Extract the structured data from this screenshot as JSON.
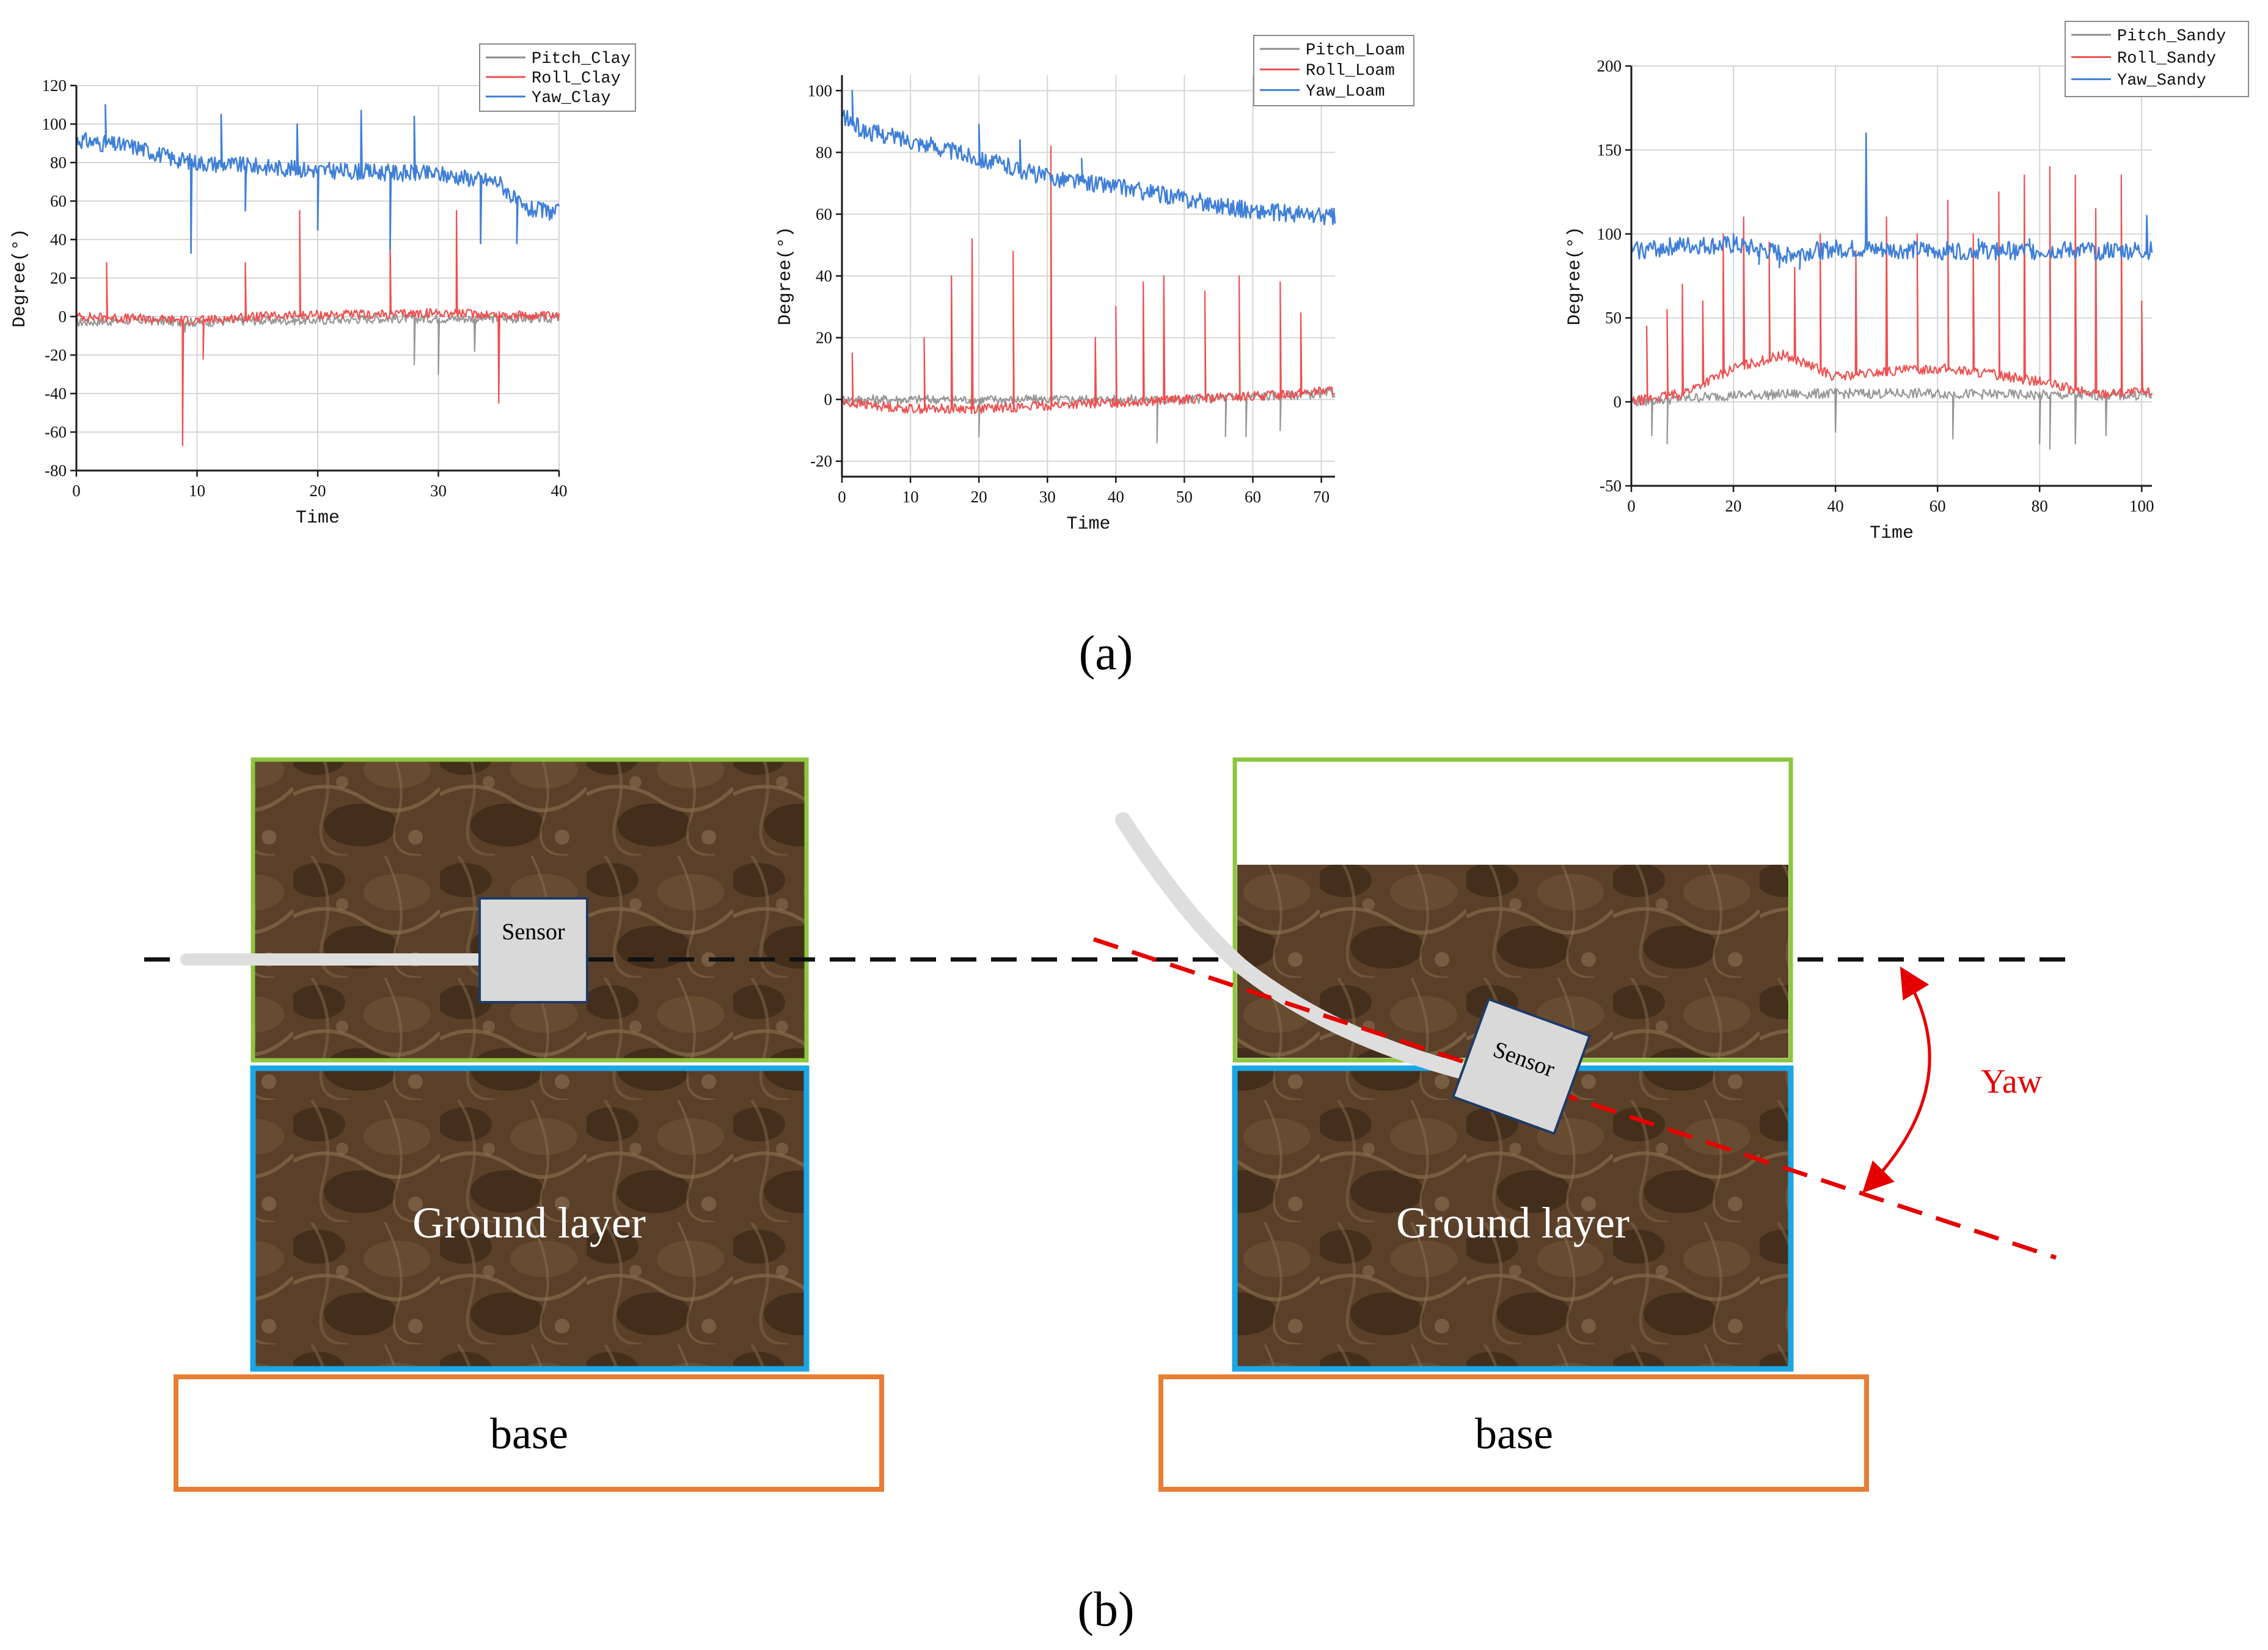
{
  "panel_labels": {
    "a": "(a)",
    "b": "(b)"
  },
  "colors": {
    "pitch": "#8c8c8c",
    "roll": "#ef4f4f",
    "yaw": "#3f7fd8",
    "grid": "#d6d6d6",
    "axis": "#1a1a1a",
    "green": "#8cc63f",
    "blue": "#1ba6e6",
    "orange": "#e67e33",
    "red": "#e50000"
  },
  "chart_data": [
    {
      "type": "line",
      "title": "",
      "xlabel": "Time",
      "ylabel": "Degree(°)",
      "xlim": [
        0,
        40
      ],
      "ylim": [
        -80,
        120
      ],
      "xticks": [
        0,
        10,
        20,
        30,
        40
      ],
      "yticks": [
        -80,
        -60,
        -40,
        -20,
        0,
        20,
        40,
        60,
        80,
        100,
        120
      ],
      "legend_position": "top-right",
      "series": [
        {
          "name": "Pitch_Clay",
          "color": "#8c8c8c",
          "x": [
            0,
            5,
            10,
            15,
            20,
            25,
            30,
            35,
            40
          ],
          "values": [
            -3,
            -2,
            -3,
            -2,
            -2,
            -1,
            -1,
            -1,
            -1
          ],
          "spikes": [
            [
              9,
              -8
            ],
            [
              19,
              -28
            ],
            [
              23,
              -20
            ],
            [
              25,
              -28
            ],
            [
              28,
              -25
            ],
            [
              30,
              -30
            ],
            [
              33,
              -18
            ]
          ]
        },
        {
          "name": "Roll_Clay",
          "color": "#ef4f4f",
          "x": [
            0,
            5,
            10,
            15,
            20,
            25,
            30,
            35,
            40
          ],
          "values": [
            0,
            -1,
            -2,
            0,
            1,
            1,
            2,
            1,
            0
          ],
          "spikes": [
            [
              2.5,
              28
            ],
            [
              8.8,
              -67
            ],
            [
              10.5,
              -22
            ],
            [
              14,
              28
            ],
            [
              18.5,
              55
            ],
            [
              23,
              45
            ],
            [
              26,
              40
            ],
            [
              31.5,
              55
            ],
            [
              35,
              -45
            ]
          ]
        },
        {
          "name": "Yaw_Clay",
          "color": "#3f7fd8",
          "x": [
            0,
            2,
            5,
            8,
            10,
            15,
            20,
            25,
            30,
            35,
            37,
            40
          ],
          "values": [
            92,
            90,
            88,
            82,
            80,
            78,
            76,
            75,
            74,
            70,
            56,
            54
          ],
          "spikes": [
            [
              2.4,
              110
            ],
            [
              9.5,
              33
            ],
            [
              12,
              105
            ],
            [
              14,
              55
            ],
            [
              18.3,
              100
            ],
            [
              20,
              45
            ],
            [
              23.6,
              107
            ],
            [
              26,
              35
            ],
            [
              28,
              104
            ],
            [
              33.5,
              38
            ],
            [
              36.5,
              38
            ]
          ]
        }
      ]
    },
    {
      "type": "line",
      "title": "",
      "xlabel": "Time",
      "ylabel": "Degree(°)",
      "xlim": [
        0,
        72
      ],
      "ylim": [
        -25,
        105
      ],
      "xticks": [
        0,
        10,
        20,
        30,
        40,
        50,
        60,
        70
      ],
      "yticks": [
        -20,
        0,
        20,
        40,
        60,
        80,
        100
      ],
      "legend_position": "top-right",
      "series": [
        {
          "name": "Pitch_Loam",
          "color": "#8c8c8c",
          "x": [
            0,
            10,
            20,
            30,
            40,
            50,
            60,
            72
          ],
          "values": [
            0,
            0,
            0,
            0,
            0,
            0,
            1,
            2
          ],
          "spikes": [
            [
              20,
              -12
            ],
            [
              46,
              -14
            ],
            [
              56,
              -12
            ],
            [
              59,
              -12
            ],
            [
              64,
              -10
            ]
          ]
        },
        {
          "name": "Roll_Loam",
          "color": "#ef4f4f",
          "x": [
            0,
            10,
            20,
            30,
            40,
            50,
            60,
            72
          ],
          "values": [
            -1,
            -3,
            -3,
            -2,
            -1,
            0,
            1,
            3
          ],
          "spikes": [
            [
              1.5,
              15
            ],
            [
              12,
              20
            ],
            [
              16,
              40
            ],
            [
              19,
              52
            ],
            [
              25,
              48
            ],
            [
              30.5,
              82
            ],
            [
              37,
              20
            ],
            [
              40,
              30
            ],
            [
              44,
              38
            ],
            [
              47,
              40
            ],
            [
              53,
              35
            ],
            [
              58,
              40
            ],
            [
              64,
              38
            ],
            [
              67,
              28
            ]
          ]
        },
        {
          "name": "Yaw_Loam",
          "color": "#3f7fd8",
          "x": [
            0,
            3,
            10,
            20,
            30,
            40,
            50,
            60,
            72
          ],
          "values": [
            92,
            87,
            84,
            78,
            72,
            69,
            65,
            61,
            59
          ],
          "spikes": [
            [
              1.5,
              100
            ],
            [
              20,
              89
            ],
            [
              26,
              84
            ],
            [
              35,
              78
            ],
            [
              45,
              75
            ]
          ]
        }
      ]
    },
    {
      "type": "line",
      "title": "",
      "xlabel": "Time",
      "ylabel": "Degree(°)",
      "xlim": [
        0,
        102
      ],
      "ylim": [
        -50,
        200
      ],
      "xticks": [
        0,
        20,
        40,
        60,
        80,
        100
      ],
      "yticks": [
        -50,
        0,
        50,
        100,
        150,
        200
      ],
      "legend_position": "top-right",
      "series": [
        {
          "name": "Pitch_Sandy",
          "color": "#8c8c8c",
          "x": [
            0,
            10,
            20,
            40,
            60,
            80,
            102
          ],
          "values": [
            0,
            2,
            4,
            5,
            5,
            4,
            4
          ],
          "spikes": [
            [
              4,
              -20
            ],
            [
              7,
              -25
            ],
            [
              40,
              -18
            ],
            [
              63,
              -22
            ],
            [
              80,
              -25
            ],
            [
              82,
              -28
            ],
            [
              87,
              -25
            ],
            [
              93,
              -20
            ]
          ]
        },
        {
          "name": "Roll_Sandy",
          "color": "#ef4f4f",
          "x": [
            0,
            10,
            20,
            30,
            40,
            50,
            60,
            70,
            80,
            90,
            102
          ],
          "values": [
            0,
            5,
            20,
            28,
            15,
            18,
            20,
            17,
            12,
            5,
            6
          ],
          "spikes": [
            [
              3,
              45
            ],
            [
              7,
              55
            ],
            [
              10,
              70
            ],
            [
              14,
              60
            ],
            [
              18,
              100
            ],
            [
              22,
              110
            ],
            [
              27,
              95
            ],
            [
              32,
              80
            ],
            [
              37,
              100
            ],
            [
              44,
              90
            ],
            [
              50,
              110
            ],
            [
              56,
              100
            ],
            [
              62,
              120
            ],
            [
              67,
              100
            ],
            [
              72,
              125
            ],
            [
              77,
              135
            ],
            [
              82,
              140
            ],
            [
              87,
              135
            ],
            [
              91,
              115
            ],
            [
              96,
              135
            ],
            [
              100,
              60
            ]
          ]
        },
        {
          "name": "Yaw_Sandy",
          "color": "#3f7fd8",
          "x": [
            0,
            10,
            20,
            30,
            40,
            60,
            80,
            102
          ],
          "values": [
            90,
            93,
            93,
            88,
            91,
            90,
            90,
            90
          ],
          "spikes": [
            [
              20,
              100
            ],
            [
              25,
              82
            ],
            [
              29,
              80
            ],
            [
              33,
              79
            ],
            [
              46,
              160
            ],
            [
              68,
              97
            ],
            [
              78,
              97
            ],
            [
              101,
              111
            ]
          ]
        }
      ]
    }
  ],
  "diagram": {
    "left": {
      "sensor_label": "Sensor",
      "ground_label": "Ground layer",
      "base_label": "base"
    },
    "right": {
      "sensor_label": "Sensor",
      "ground_label": "Ground layer",
      "base_label": "base",
      "angle_label": "Yaw"
    }
  }
}
